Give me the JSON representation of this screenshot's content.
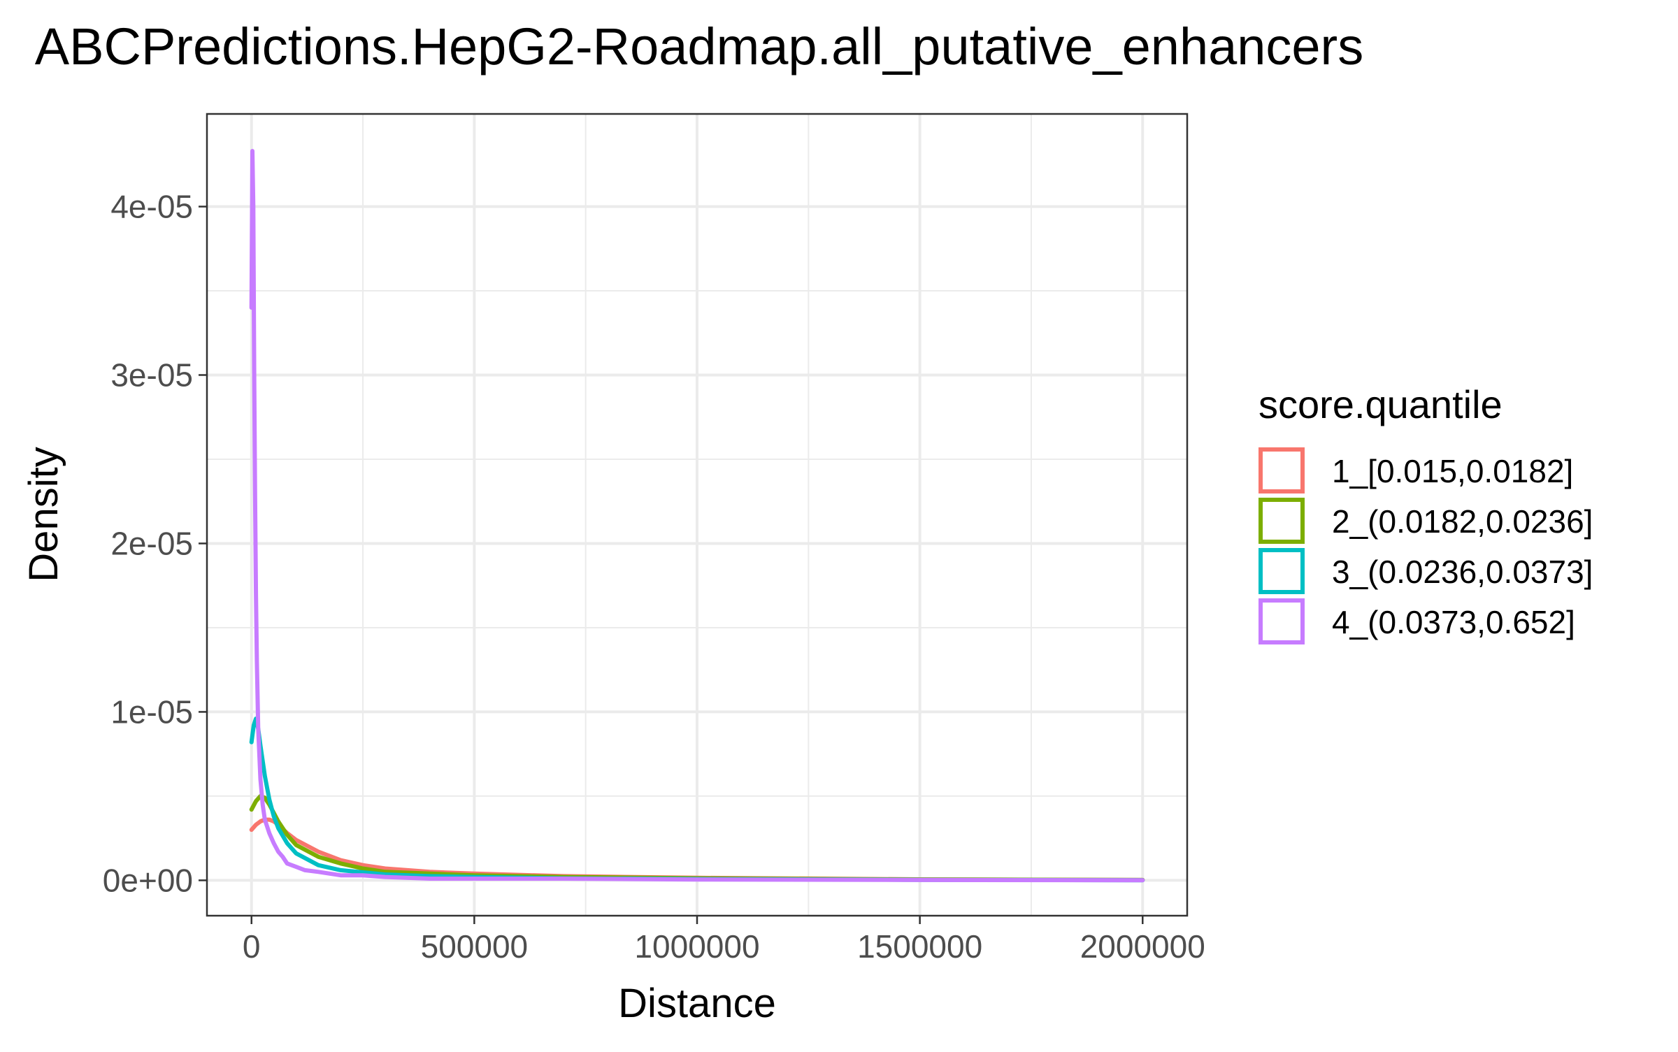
{
  "chart_data": {
    "type": "line",
    "title": "ABCPredictions.HepG2-Roadmap.all_putative_enhancers",
    "xlabel": "Distance",
    "ylabel": "Density",
    "xlim": [
      -100000,
      2100000
    ],
    "ylim": [
      -2.1e-06,
      4.55e-05
    ],
    "x_ticks": [
      0,
      500000,
      1000000,
      1500000,
      2000000
    ],
    "x_tick_labels": [
      "0",
      "500000",
      "1000000",
      "1500000",
      "2000000"
    ],
    "x_minor_ticks": [
      250000,
      750000,
      1250000,
      1750000
    ],
    "y_ticks": [
      0,
      1e-05,
      2e-05,
      3e-05,
      4e-05
    ],
    "y_tick_labels": [
      "0e+00",
      "1e-05",
      "2e-05",
      "3e-05",
      "4e-05"
    ],
    "y_minor_ticks": [
      5e-06,
      1.5e-05,
      2.5e-05,
      3.5e-05
    ],
    "grid": true,
    "legend": {
      "title": "score.quantile",
      "position": "right"
    },
    "colors": [
      "#F8766D",
      "#7CAE00",
      "#00BFC4",
      "#C77CFF"
    ],
    "series": [
      {
        "name": "1_[0.015,0.0182]",
        "x": [
          0,
          10000,
          20000,
          30000,
          40000,
          50000,
          60000,
          80000,
          100000,
          150000,
          200000,
          250000,
          300000,
          400000,
          500000,
          700000,
          1000000,
          1500000,
          2000000
        ],
        "y": [
          3e-06,
          3.3e-06,
          3.5e-06,
          3.6e-06,
          3.6e-06,
          3.5e-06,
          3.3e-06,
          2.8e-06,
          2.4e-06,
          1.7e-06,
          1.2e-06,
          9e-07,
          7e-07,
          5e-07,
          4e-07,
          2.5e-07,
          1.5e-07,
          6e-08,
          2e-08
        ]
      },
      {
        "name": "2_(0.0182,0.0236]",
        "x": [
          0,
          10000,
          20000,
          30000,
          40000,
          50000,
          60000,
          80000,
          100000,
          150000,
          200000,
          250000,
          300000,
          400000,
          500000,
          700000,
          1000000,
          1500000,
          2000000
        ],
        "y": [
          4.2e-06,
          4.7e-06,
          5e-06,
          4.9e-06,
          4.5e-06,
          4e-06,
          3.5e-06,
          2.7e-06,
          2.1e-06,
          1.4e-06,
          1e-06,
          7e-07,
          5e-07,
          4e-07,
          3e-07,
          2e-07,
          1.2e-07,
          5e-08,
          2e-08
        ]
      },
      {
        "name": "3_(0.0236,0.0373]",
        "x": [
          0,
          5000,
          10000,
          15000,
          20000,
          30000,
          40000,
          50000,
          60000,
          80000,
          100000,
          150000,
          200000,
          300000,
          400000,
          500000,
          700000,
          1000000,
          1500000,
          2000000
        ],
        "y": [
          8.2e-06,
          9.2e-06,
          9.6e-06,
          9e-06,
          8e-06,
          6.2e-06,
          4.8e-06,
          3.8e-06,
          3.1e-06,
          2.2e-06,
          1.6e-06,
          9e-07,
          6e-07,
          3.5e-07,
          2.5e-07,
          2e-07,
          1.2e-07,
          8e-08,
          3e-08,
          1e-08
        ]
      },
      {
        "name": "4_(0.0373,0.652]",
        "x": [
          0,
          2000,
          4000,
          6000,
          8000,
          10000,
          12000,
          15000,
          20000,
          25000,
          30000,
          40000,
          50000,
          60000,
          70000,
          80000,
          100000,
          120000,
          150000,
          200000,
          250000,
          300000,
          400000,
          500000,
          700000,
          1000000,
          1500000,
          2000000
        ],
        "y": [
          3.4e-05,
          4.33e-05,
          4e-05,
          3e-05,
          2.3e-05,
          1.7e-05,
          1.3e-05,
          9e-06,
          6e-06,
          4.5e-06,
          3.6e-06,
          2.8e-06,
          2.2e-06,
          1.7e-06,
          1.4e-06,
          1e-06,
          8e-07,
          6e-07,
          5e-07,
          3e-07,
          3e-07,
          2e-07,
          1e-07,
          1e-07,
          1e-07,
          5e-08,
          2e-08,
          1e-08
        ]
      }
    ]
  }
}
